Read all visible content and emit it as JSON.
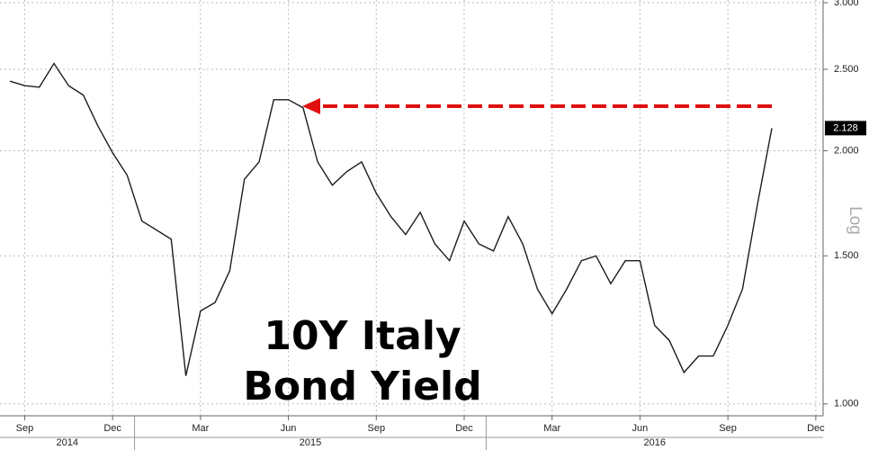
{
  "chart_data": {
    "type": "line",
    "annotation": [
      "10Y Italy",
      "Bond Yield"
    ],
    "y_label": "Log",
    "log_scale": true,
    "grid": true,
    "categories": [
      null,
      "Sep",
      null,
      null,
      null,
      null,
      null,
      "Dec",
      null,
      null,
      null,
      null,
      null,
      "Mar",
      null,
      null,
      null,
      null,
      null,
      "Jun",
      null,
      null,
      null,
      null,
      null,
      "Sep",
      null,
      null,
      null,
      null,
      null,
      "Dec",
      null,
      null,
      null,
      null,
      null,
      "Mar",
      null,
      null,
      null,
      null,
      null,
      "Jun",
      null,
      null,
      null,
      null,
      null,
      "Sep",
      null,
      null,
      null,
      null,
      null,
      "Dec"
    ],
    "years": [
      "2014",
      "2015",
      "2016"
    ],
    "series": [
      {
        "color": "#1c1c1c",
        "values": [
          2.42,
          2.39,
          2.38,
          2.54,
          2.39,
          2.33,
          2.14,
          1.99,
          1.87,
          1.65,
          1.61,
          1.57,
          1.08,
          1.29,
          1.32,
          1.44,
          1.85,
          1.94,
          2.3,
          2.3,
          2.25,
          1.94,
          1.82,
          1.89,
          1.94,
          1.78,
          1.67,
          1.59,
          1.69,
          1.55,
          1.48,
          1.65,
          1.55,
          1.52,
          1.67,
          1.55,
          1.37,
          1.28,
          1.37,
          1.48,
          1.5,
          1.39,
          1.48,
          1.48,
          1.24,
          1.19,
          1.09,
          1.14,
          1.14,
          1.24,
          1.37,
          1.72,
          2.128,
          null,
          null,
          null
        ]
      }
    ],
    "ylim": [
      0.968,
      3.0
    ],
    "yticks": [
      {
        "value": 1,
        "label": "1.000"
      },
      {
        "value": 1.5,
        "label": "1.500"
      },
      {
        "value": 2,
        "label": "2.000"
      },
      {
        "value": 2.5,
        "label": "2.500"
      },
      {
        "value": 3,
        "label": "3.000"
      }
    ]
  }
}
